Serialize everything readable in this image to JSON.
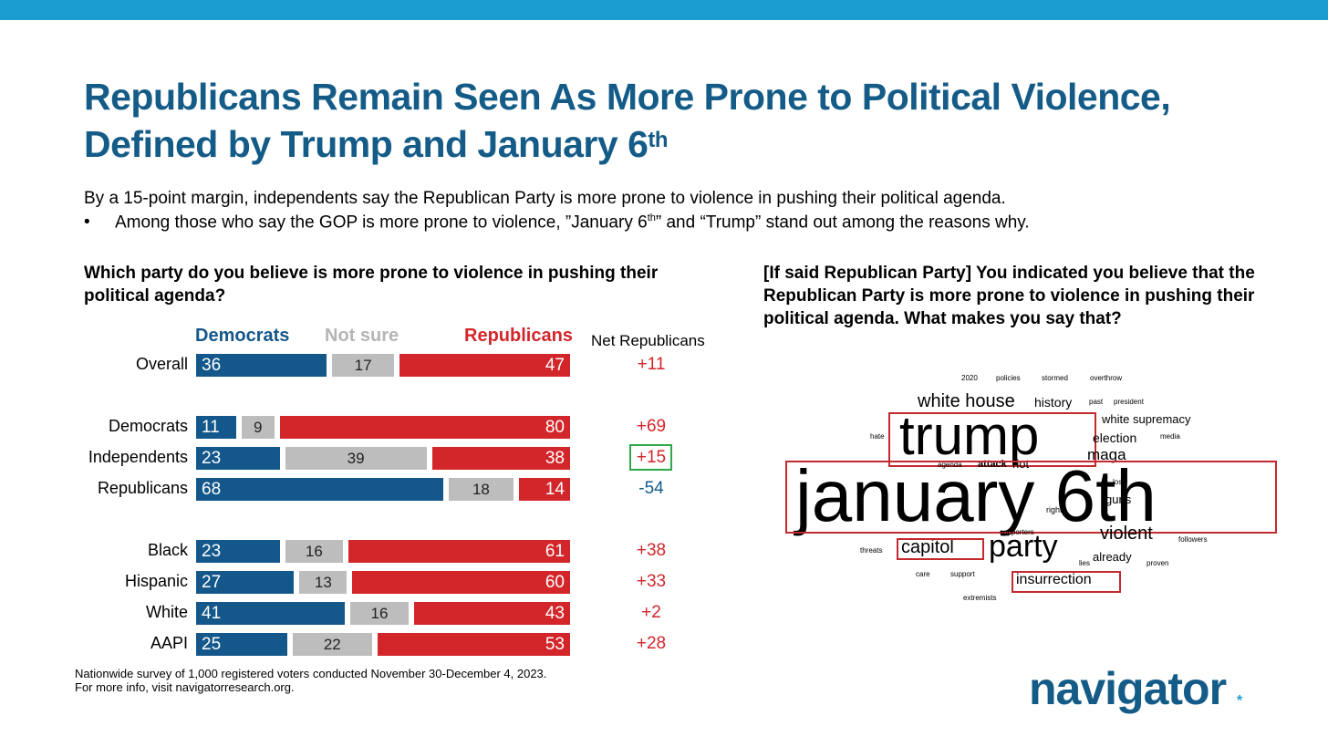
{
  "title": {
    "line1": "Republicans Remain Seen As More Prone to Political Violence,",
    "line2_main": "Defined by Trump and January 6",
    "line2_sup": "th"
  },
  "lead": "By a 15-point margin, independents say the Republican Party is more prone to violence in pushing their political agenda.",
  "bullet": {
    "mark": "•",
    "text_a": "Among those who say the GOP is more prone to violence, ”January 6",
    "sup": "th",
    "text_b": "” and “Trump” stand out among the reasons why."
  },
  "question_left": "Which party do you believe is more prone to violence in pushing their political agenda?",
  "question_right": "[If said Republican Party] You indicated you believe that the Republican Party is more prone to violence in pushing their political agenda. What makes you say that?",
  "colors": {
    "dem": "#14578a",
    "not_sure": "#bdbdbd",
    "rep": "#d3262a",
    "title": "#145c87",
    "net_neg": "#145c87",
    "net_pos": "#d3262a",
    "highlight": "#2ea84a"
  },
  "chart_data": {
    "type": "bar",
    "orientation": "horizontal-stacked-100",
    "legend": {
      "dem": "Democrats",
      "not_sure": "Not sure",
      "rep": "Republicans"
    },
    "net_header": "Net Republicans",
    "rows": [
      {
        "label": "Overall",
        "dem": 36,
        "not_sure": 17,
        "rep": 47,
        "net": "+11",
        "group": 0
      },
      {
        "label": "Democrats",
        "dem": 11,
        "not_sure": 9,
        "rep": 80,
        "net": "+69",
        "group": 1
      },
      {
        "label": "Independents",
        "dem": 23,
        "not_sure": 39,
        "rep": 38,
        "net": "+15",
        "group": 1,
        "highlight": true
      },
      {
        "label": "Republicans",
        "dem": 68,
        "not_sure": 18,
        "rep": 14,
        "net": "-54",
        "group": 1
      },
      {
        "label": "Black",
        "dem": 23,
        "not_sure": 16,
        "rep": 61,
        "net": "+38",
        "group": 2
      },
      {
        "label": "Hispanic",
        "dem": 27,
        "not_sure": 13,
        "rep": 60,
        "net": "+33",
        "group": 2
      },
      {
        "label": "White",
        "dem": 41,
        "not_sure": 16,
        "rep": 43,
        "net": "+2",
        "group": 2
      },
      {
        "label": "AAPI",
        "dem": 25,
        "not_sure": 22,
        "rep": 53,
        "net": "+28",
        "group": 2
      }
    ]
  },
  "wordcloud": {
    "words": [
      {
        "text": "2020",
        "emph": false
      },
      {
        "text": "policies",
        "emph": false
      },
      {
        "text": "stormed",
        "emph": false
      },
      {
        "text": "overthrow",
        "emph": false
      },
      {
        "text": "white house",
        "emph": false
      },
      {
        "text": "history",
        "emph": false
      },
      {
        "text": "past",
        "emph": false
      },
      {
        "text": "president",
        "emph": false
      },
      {
        "text": "trump",
        "emph": true
      },
      {
        "text": "white supremacy",
        "emph": false
      },
      {
        "text": "hate",
        "emph": false
      },
      {
        "text": "election",
        "emph": false
      },
      {
        "text": "media",
        "emph": false
      },
      {
        "text": "maga",
        "emph": false
      },
      {
        "text": "agenda",
        "emph": false
      },
      {
        "text": "attack",
        "emph": false
      },
      {
        "text": "riot",
        "emph": false
      },
      {
        "text": "january 6th",
        "emph": true
      },
      {
        "text": "lost",
        "emph": false
      },
      {
        "text": "guns",
        "emph": false
      },
      {
        "text": "right",
        "emph": false
      },
      {
        "text": "supporters",
        "emph": false
      },
      {
        "text": "violent",
        "emph": false
      },
      {
        "text": "followers",
        "emph": false
      },
      {
        "text": "threats",
        "emph": false
      },
      {
        "text": "capitol",
        "emph": true
      },
      {
        "text": "party",
        "emph": false
      },
      {
        "text": "lies",
        "emph": false
      },
      {
        "text": "already",
        "emph": false
      },
      {
        "text": "proven",
        "emph": false
      },
      {
        "text": "care",
        "emph": false
      },
      {
        "text": "support",
        "emph": false
      },
      {
        "text": "insurrection",
        "emph": true
      },
      {
        "text": "extremists",
        "emph": false
      }
    ]
  },
  "footnote": {
    "line1": "Nationwide survey of 1,000 registered voters conducted November 30-December 4, 2023.",
    "line2": "For more info, visit navigatorresearch.org."
  },
  "logo": {
    "text": "navigator",
    "mark": "*"
  }
}
